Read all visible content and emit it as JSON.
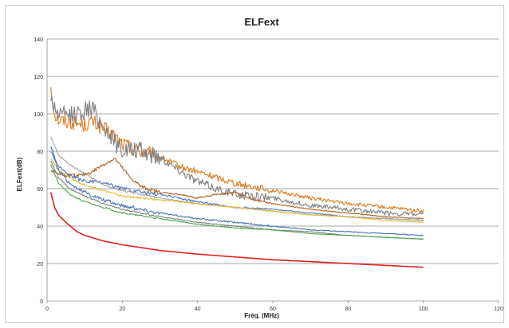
{
  "chart_data": {
    "type": "line",
    "title": "ELFext",
    "xlabel": "Fréq. (MHz)",
    "ylabel": "ELFext(dB)",
    "xlim": [
      0,
      120
    ],
    "ylim": [
      0,
      140
    ],
    "xticks": [
      0,
      20,
      40,
      60,
      80,
      100,
      120
    ],
    "yticks": [
      0,
      20,
      40,
      60,
      80,
      100,
      120,
      140
    ],
    "grid": "horizontal",
    "legend": "none",
    "series": [
      {
        "color": "#E07A1F",
        "noise": 4.0,
        "x": [
          1,
          2,
          3,
          5,
          8,
          10,
          12,
          15,
          18,
          20,
          25,
          30,
          35,
          40,
          45,
          50,
          55,
          60,
          70,
          80,
          90,
          100
        ],
        "y": [
          115,
          100,
          97,
          96,
          95,
          94,
          96,
          92,
          88,
          84,
          80,
          77,
          72,
          69,
          66,
          63,
          61,
          59,
          55,
          52,
          50,
          48
        ]
      },
      {
        "color": "#7F7F7F",
        "noise": 5.0,
        "x": [
          1,
          2,
          3,
          5,
          8,
          10,
          12,
          15,
          18,
          20,
          25,
          30,
          35,
          40,
          45,
          50,
          55,
          60,
          70,
          80,
          90,
          100
        ],
        "y": [
          108,
          104,
          100,
          99,
          100,
          102,
          103,
          93,
          85,
          81,
          80,
          77,
          70,
          64,
          60,
          57,
          56,
          55,
          51,
          49,
          47,
          46
        ]
      },
      {
        "color": "#B55A1E",
        "noise": 1.0,
        "x": [
          1,
          3,
          6,
          9,
          12,
          15,
          18,
          20,
          22,
          25,
          30,
          35,
          40,
          45,
          50,
          55,
          60,
          70,
          80,
          90,
          100
        ],
        "y": [
          70,
          68,
          67,
          67,
          69,
          73,
          76,
          71,
          66,
          61,
          58,
          57,
          55,
          57,
          58,
          54,
          52,
          49,
          47,
          45,
          44
        ]
      },
      {
        "color": "#4A74B4",
        "noise": 1.0,
        "x": [
          1,
          3,
          6,
          10,
          15,
          20,
          25,
          30,
          40,
          50,
          60,
          70,
          80,
          90,
          100
        ],
        "y": [
          80,
          72,
          67,
          64,
          63,
          60,
          58,
          57,
          53,
          50,
          49,
          47,
          45,
          44,
          43
        ]
      },
      {
        "color": "#A5A5A5",
        "noise": 0.5,
        "x": [
          1,
          3,
          6,
          10,
          15,
          20,
          30,
          40,
          50,
          60,
          70,
          80,
          90,
          100
        ],
        "y": [
          88,
          78,
          73,
          68,
          62,
          59,
          55,
          52,
          50,
          48,
          46,
          45,
          44,
          43
        ]
      },
      {
        "color": "#E6B830",
        "noise": 0.5,
        "x": [
          1,
          3,
          6,
          10,
          15,
          20,
          30,
          40,
          50,
          60,
          70,
          80,
          90,
          100
        ],
        "y": [
          76,
          70,
          66,
          62,
          59,
          56,
          54,
          52,
          50,
          48,
          46,
          45,
          43,
          42
        ]
      },
      {
        "color": "#4A74B4",
        "noise": 1.0,
        "x": [
          1,
          3,
          6,
          10,
          15,
          20,
          30,
          40,
          50,
          60,
          70,
          80,
          90,
          100
        ],
        "y": [
          83,
          70,
          63,
          58,
          54,
          51,
          47,
          44,
          42,
          40,
          38,
          37,
          36,
          35
        ]
      },
      {
        "color": "#7F7F7F",
        "noise": 0.4,
        "x": [
          1,
          3,
          6,
          10,
          15,
          20,
          30,
          40,
          50,
          60,
          70,
          80,
          90,
          100
        ],
        "y": [
          75,
          66,
          60,
          56,
          52,
          49,
          45,
          42,
          40,
          38,
          37,
          35,
          34,
          33
        ]
      },
      {
        "color": "#4CA64C",
        "noise": 0.4,
        "x": [
          1,
          3,
          6,
          10,
          15,
          20,
          30,
          40,
          50,
          60,
          70,
          80,
          90,
          100
        ],
        "y": [
          73,
          63,
          57,
          53,
          50,
          47,
          44,
          41,
          39,
          38,
          36,
          35,
          34,
          33
        ]
      },
      {
        "color": "#E02020",
        "noise": 0,
        "x": [
          1,
          2,
          3,
          5,
          8,
          10,
          15,
          20,
          30,
          40,
          50,
          60,
          70,
          80,
          90,
          100
        ],
        "y": [
          58,
          50,
          46,
          42,
          37,
          35,
          32,
          30,
          27,
          25,
          23.5,
          22,
          21,
          20,
          19,
          18
        ]
      }
    ]
  }
}
